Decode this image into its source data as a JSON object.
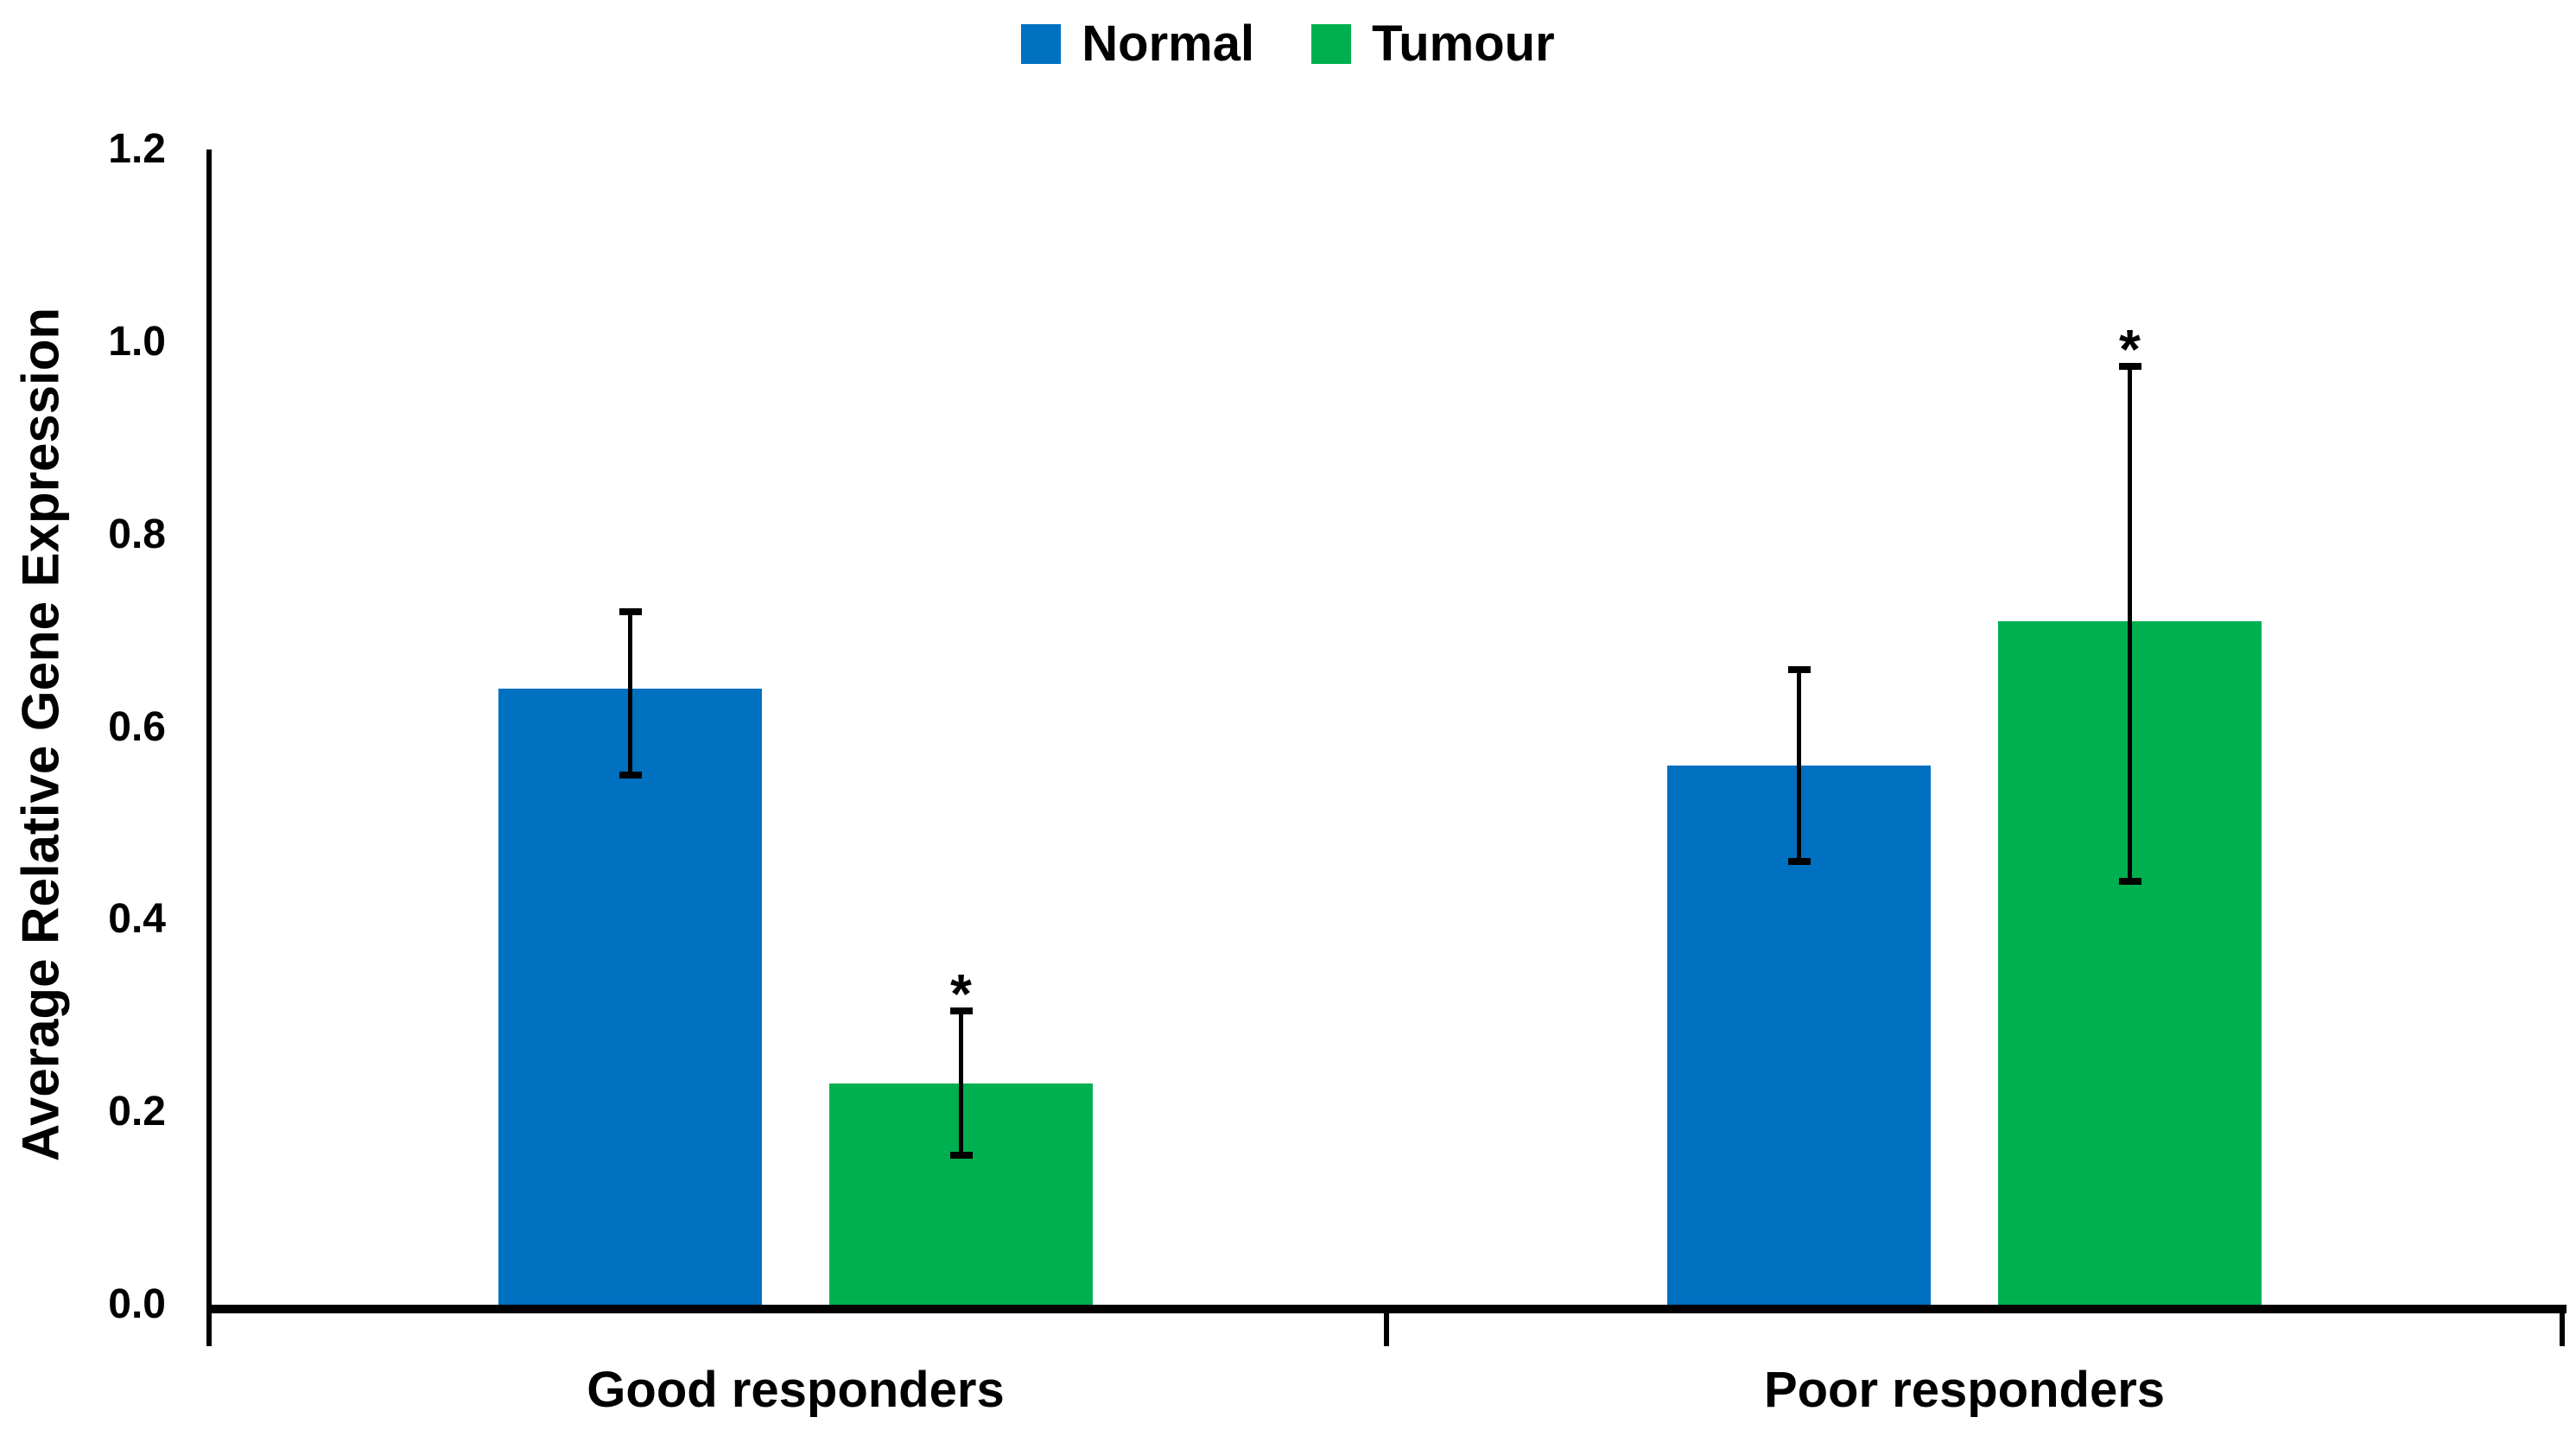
{
  "chart_data": {
    "type": "bar",
    "categories": [
      "Good responders",
      "Poor responders"
    ],
    "series": [
      {
        "name": "Normal",
        "color": "#0070C0",
        "values": [
          0.64,
          0.56
        ],
        "error_low": [
          0.55,
          0.46
        ],
        "error_high": [
          0.72,
          0.66
        ],
        "significant": [
          false,
          false
        ]
      },
      {
        "name": "Tumour",
        "color": "#00B050",
        "values": [
          0.23,
          0.71
        ],
        "error_low": [
          0.155,
          0.44
        ],
        "error_high": [
          0.305,
          0.975
        ],
        "significant": [
          true,
          true
        ]
      }
    ],
    "ylabel": "Average Relative Gene Expression",
    "ylim": [
      0,
      1.2
    ],
    "yticks": [
      {
        "label": "1.2",
        "value": 1.2
      },
      {
        "label": "1.0",
        "value": 1.0
      },
      {
        "label": "0.8",
        "value": 0.8
      },
      {
        "label": "0.6",
        "value": 0.6
      },
      {
        "label": "0.4",
        "value": 0.4
      },
      {
        "label": "0.2",
        "value": 0.2
      },
      {
        "label": "0.0",
        "value": 0.0
      }
    ],
    "grid": false,
    "legend_position": "top-center",
    "significance_marker": "*",
    "axis_color": "#000000",
    "background_color": "#ffffff"
  }
}
